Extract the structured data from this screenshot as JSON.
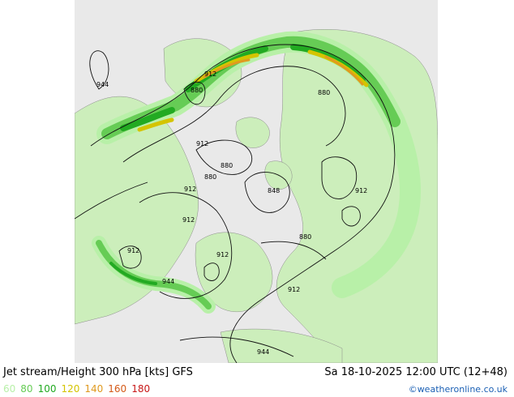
{
  "title": "Jet stream/Height 300 hPa [kts] GFS",
  "valid_time": "Sa 18-10-2025 12:00 UTC (12+48)",
  "credit": "©weatheronline.co.uk",
  "legend": [
    {
      "label": "60",
      "color": "#b8f0a8"
    },
    {
      "label": "80",
      "color": "#66cc55"
    },
    {
      "label": "100",
      "color": "#22aa22"
    },
    {
      "label": "120",
      "color": "#d4c400"
    },
    {
      "label": "140",
      "color": "#e09a20"
    },
    {
      "label": "160",
      "color": "#d45a18"
    },
    {
      "label": "180",
      "color": "#c81818"
    }
  ],
  "colors": {
    "ocean": "#e9e9e9",
    "land": "#cceebb",
    "background": "#ffffff"
  },
  "contour_labels": [
    "944",
    "912",
    "880",
    "880",
    "912",
    "880",
    "880",
    "912",
    "848",
    "912",
    "912",
    "880",
    "912",
    "912",
    "944",
    "912",
    "944"
  ]
}
